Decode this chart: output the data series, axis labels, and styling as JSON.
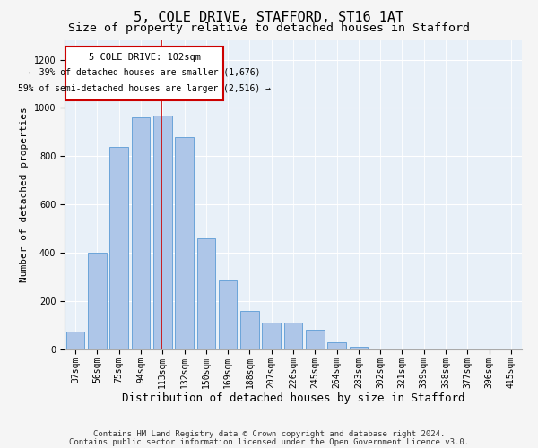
{
  "title1": "5, COLE DRIVE, STAFFORD, ST16 1AT",
  "title2": "Size of property relative to detached houses in Stafford",
  "xlabel": "Distribution of detached houses by size in Stafford",
  "ylabel": "Number of detached properties",
  "categories": [
    "37sqm",
    "56sqm",
    "75sqm",
    "94sqm",
    "113sqm",
    "132sqm",
    "150sqm",
    "169sqm",
    "188sqm",
    "207sqm",
    "226sqm",
    "245sqm",
    "264sqm",
    "283sqm",
    "302sqm",
    "321sqm",
    "339sqm",
    "358sqm",
    "377sqm",
    "396sqm",
    "415sqm"
  ],
  "values": [
    75,
    400,
    840,
    960,
    970,
    880,
    460,
    285,
    160,
    110,
    110,
    80,
    30,
    10,
    5,
    5,
    0,
    5,
    0,
    5,
    0
  ],
  "bar_color": "#aec6e8",
  "bar_edge_color": "#5b9bd5",
  "annotation_title": "5 COLE DRIVE: 102sqm",
  "annotation_line1": "← 39% of detached houses are smaller (1,676)",
  "annotation_line2": "59% of semi-detached houses are larger (2,516) →",
  "annotation_box_color": "#ffffff",
  "annotation_box_edge_color": "#cc0000",
  "red_line_color": "#cc0000",
  "footer_line1": "Contains HM Land Registry data © Crown copyright and database right 2024.",
  "footer_line2": "Contains public sector information licensed under the Open Government Licence v3.0.",
  "ylim": [
    0,
    1280
  ],
  "yticks": [
    0,
    200,
    400,
    600,
    800,
    1000,
    1200
  ],
  "background_color": "#e8f0f8",
  "fig_background_color": "#f5f5f5",
  "grid_color": "#ffffff",
  "title1_fontsize": 11,
  "title2_fontsize": 9.5,
  "xlabel_fontsize": 9,
  "ylabel_fontsize": 8,
  "tick_fontsize": 7,
  "footer_fontsize": 6.5,
  "annotation_fontsize": 7.5
}
